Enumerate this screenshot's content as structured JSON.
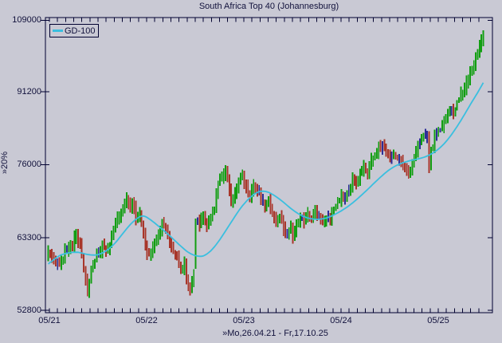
{
  "chart_data": {
    "type": "ohlc-bar",
    "title": "South Africa Top 40 (Johannesburg)",
    "legend": "GD-100",
    "range_label": "»Mo,26.04.21 - Fr,17.10.25",
    "y_axis": {
      "scale": "log",
      "unit_label": "»20%",
      "ticks": [
        109000,
        91200,
        76000,
        63300,
        52800
      ],
      "min": 52500,
      "max": 109800
    },
    "x_axis": {
      "tick_labels": [
        "05/21",
        "05/22",
        "05/23",
        "05/24",
        "05/25"
      ],
      "month_tick_count": 54,
      "weeks_total": 234
    },
    "series": {
      "close_anchors": [
        [
          0,
          61500
        ],
        [
          2,
          60300
        ],
        [
          4,
          59600
        ],
        [
          6,
          58800
        ],
        [
          9,
          61200
        ],
        [
          13,
          62300
        ],
        [
          15,
          64200
        ],
        [
          17,
          62000
        ],
        [
          19,
          58500
        ],
        [
          21,
          55200
        ],
        [
          23,
          58800
        ],
        [
          26,
          60500
        ],
        [
          29,
          62000
        ],
        [
          31,
          61000
        ],
        [
          34,
          63500
        ],
        [
          37,
          66500
        ],
        [
          40,
          68000
        ],
        [
          42,
          69800
        ],
        [
          44,
          68500
        ],
        [
          45,
          69500
        ],
        [
          47,
          66500
        ],
        [
          49,
          67500
        ],
        [
          52,
          62000
        ],
        [
          54,
          60500
        ],
        [
          56,
          61500
        ],
        [
          58,
          63000
        ],
        [
          61,
          65800
        ],
        [
          63,
          64500
        ],
        [
          66,
          61500
        ],
        [
          69,
          60500
        ],
        [
          71,
          58000
        ],
        [
          73,
          59500
        ],
        [
          75,
          55800
        ],
        [
          76,
          55200
        ],
        [
          78,
          58500
        ],
        [
          79,
          66000
        ],
        [
          81,
          65500
        ],
        [
          83,
          67000
        ],
        [
          85,
          65000
        ],
        [
          87,
          66500
        ],
        [
          89,
          68500
        ],
        [
          91,
          72500
        ],
        [
          93,
          74000
        ],
        [
          95,
          74800
        ],
        [
          97,
          71500
        ],
        [
          98,
          69200
        ],
        [
          100,
          70500
        ],
        [
          102,
          72500
        ],
        [
          104,
          73800
        ],
        [
          106,
          72000
        ],
        [
          108,
          70500
        ],
        [
          110,
          72000
        ],
        [
          112,
          71500
        ],
        [
          114,
          69800
        ],
        [
          116,
          68500
        ],
        [
          118,
          69500
        ],
        [
          120,
          67000
        ],
        [
          122,
          65500
        ],
        [
          124,
          66800
        ],
        [
          126,
          64800
        ],
        [
          128,
          63800
        ],
        [
          130,
          64800
        ],
        [
          131,
          63400
        ],
        [
          133,
          65500
        ],
        [
          135,
          67000
        ],
        [
          137,
          66000
        ],
        [
          139,
          67500
        ],
        [
          141,
          66000
        ],
        [
          143,
          67800
        ],
        [
          145,
          66500
        ],
        [
          147,
          65800
        ],
        [
          149,
          67000
        ],
        [
          151,
          66200
        ],
        [
          153,
          68000
        ],
        [
          155,
          69500
        ],
        [
          157,
          70500
        ],
        [
          159,
          69800
        ],
        [
          161,
          71500
        ],
        [
          163,
          73500
        ],
        [
          165,
          72500
        ],
        [
          167,
          74000
        ],
        [
          169,
          75500
        ],
        [
          171,
          74500
        ],
        [
          173,
          76500
        ],
        [
          175,
          78000
        ],
        [
          177,
          79500
        ],
        [
          179,
          79800
        ],
        [
          181,
          78500
        ],
        [
          183,
          77000
        ],
        [
          185,
          78500
        ],
        [
          187,
          77500
        ],
        [
          189,
          76800
        ],
        [
          191,
          75500
        ],
        [
          193,
          74000
        ],
        [
          195,
          76500
        ],
        [
          197,
          78500
        ],
        [
          199,
          80500
        ],
        [
          201,
          82000
        ],
        [
          203,
          81500
        ],
        [
          204,
          76300
        ],
        [
          205,
          78500
        ],
        [
          207,
          81500
        ],
        [
          209,
          82500
        ],
        [
          211,
          84000
        ],
        [
          213,
          85500
        ],
        [
          215,
          87500
        ],
        [
          217,
          86500
        ],
        [
          219,
          88500
        ],
        [
          221,
          90500
        ],
        [
          223,
          92000
        ],
        [
          225,
          94000
        ],
        [
          227,
          96500
        ],
        [
          229,
          99000
        ],
        [
          231,
          102000
        ],
        [
          233,
          105500
        ]
      ],
      "ma100_anchors": [
        [
          0,
          59300
        ],
        [
          6,
          60600
        ],
        [
          11,
          61000
        ],
        [
          16,
          61100
        ],
        [
          21,
          60700
        ],
        [
          26,
          60600
        ],
        [
          31,
          61200
        ],
        [
          36,
          62500
        ],
        [
          40,
          64000
        ],
        [
          44,
          65500
        ],
        [
          48,
          66600
        ],
        [
          51,
          67000
        ],
        [
          55,
          66200
        ],
        [
          59,
          65200
        ],
        [
          63,
          64200
        ],
        [
          67,
          63100
        ],
        [
          71,
          62000
        ],
        [
          75,
          61000
        ],
        [
          79,
          60500
        ],
        [
          83,
          60400
        ],
        [
          87,
          61200
        ],
        [
          91,
          62600
        ],
        [
          95,
          64400
        ],
        [
          99,
          66300
        ],
        [
          103,
          68200
        ],
        [
          107,
          69700
        ],
        [
          111,
          70800
        ],
        [
          114,
          71200
        ],
        [
          118,
          71000
        ],
        [
          122,
          70200
        ],
        [
          126,
          69200
        ],
        [
          130,
          68100
        ],
        [
          134,
          67200
        ],
        [
          138,
          66600
        ],
        [
          142,
          66300
        ],
        [
          146,
          66300
        ],
        [
          150,
          66600
        ],
        [
          154,
          67200
        ],
        [
          158,
          67900
        ],
        [
          162,
          68800
        ],
        [
          166,
          69900
        ],
        [
          170,
          71100
        ],
        [
          174,
          72400
        ],
        [
          178,
          73700
        ],
        [
          182,
          74900
        ],
        [
          186,
          75800
        ],
        [
          190,
          76400
        ],
        [
          194,
          76800
        ],
        [
          198,
          77100
        ],
        [
          202,
          77500
        ],
        [
          206,
          78200
        ],
        [
          210,
          79300
        ],
        [
          214,
          80900
        ],
        [
          218,
          83000
        ],
        [
          222,
          85500
        ],
        [
          226,
          88300
        ],
        [
          230,
          91000
        ],
        [
          233,
          93300
        ]
      ],
      "special_bars": [
        {
          "week": 21,
          "low": 54700
        },
        {
          "week": 76,
          "low": 54800
        },
        {
          "week": 79,
          "high": 66400,
          "low": 58600
        },
        {
          "week": 204,
          "high": 82600,
          "low": 74400
        }
      ]
    },
    "colors": {
      "background": "#c9c9d4",
      "frame": "#000030",
      "text": "#12123c",
      "bar_up": "#129e12",
      "bar_down": "#a8362a",
      "bar_flat": "#2d2d99",
      "ma_line": "#3abfdf"
    }
  }
}
